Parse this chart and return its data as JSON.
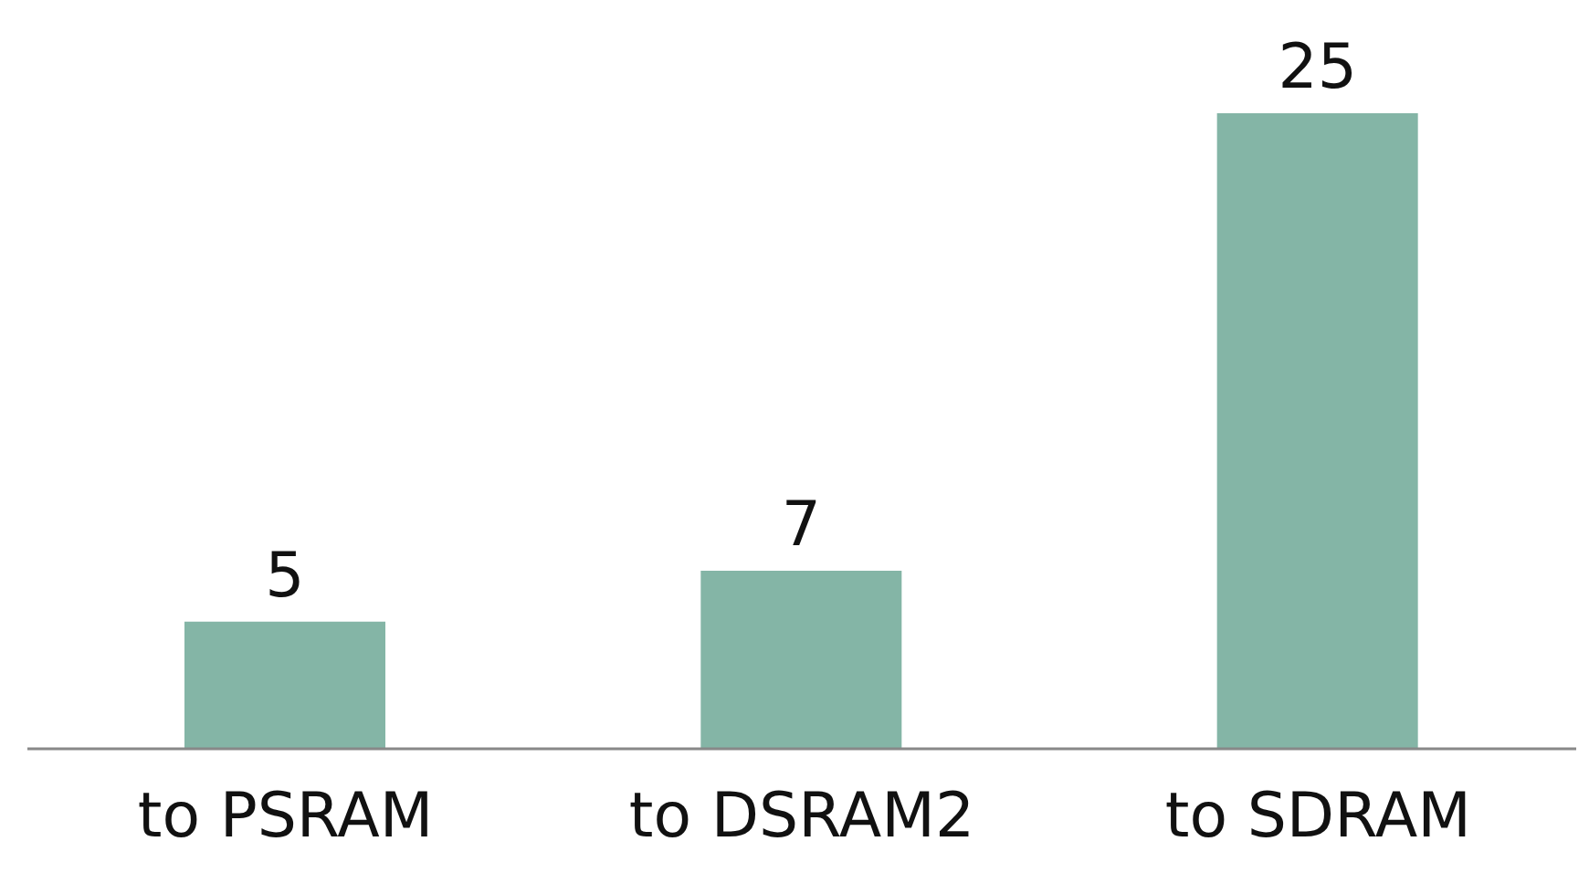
{
  "chart_data": {
    "type": "bar",
    "categories": [
      "to PSRAM",
      "to DSRAM2",
      "to SDRAM"
    ],
    "values": [
      5,
      7,
      25
    ],
    "color": "#84b5a6",
    "data_labels": true
  }
}
